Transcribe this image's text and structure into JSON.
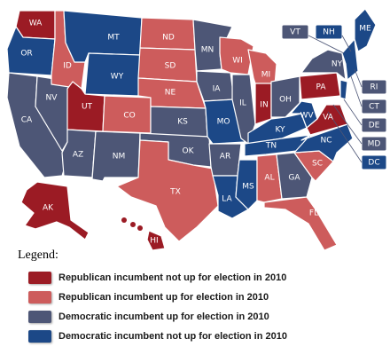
{
  "colors": {
    "rep_not_up": "#9b1b24",
    "rep_up": "#cd5c5c",
    "dem_up": "#4d5676",
    "dem_not_up": "#1c4887"
  },
  "states": {
    "WA": "WA",
    "OR": "OR",
    "CA": "CA",
    "NV": "NV",
    "ID": "ID",
    "MT": "MT",
    "WY": "WY",
    "UT": "UT",
    "AZ": "AZ",
    "CO": "CO",
    "NM": "NM",
    "ND": "ND",
    "SD": "SD",
    "NE": "NE",
    "KS": "KS",
    "OK": "OK",
    "TX": "TX",
    "MN": "MN",
    "IA": "IA",
    "MO": "MO",
    "AR": "AR",
    "LA": "LA",
    "WI": "WI",
    "IL": "IL",
    "MS": "MS",
    "MI": "MI",
    "IN": "IN",
    "KY": "KY",
    "TN": "TN",
    "AL": "AL",
    "OH": "OH",
    "GA": "GA",
    "FL": "FL",
    "SC": "SC",
    "NC": "NC",
    "WV": "WV",
    "VA": "VA",
    "PA": "PA",
    "NY": "NY",
    "ME": "ME",
    "AK": "AK",
    "HI": "HI"
  },
  "small_states": [
    "VT",
    "NH",
    "RI",
    "CT",
    "DE",
    "MD",
    "DC"
  ],
  "legend": {
    "title": "Legend:",
    "items": [
      {
        "label": "Republican incumbent not up for election in 2010",
        "color": "#9b1b24"
      },
      {
        "label": "Republican incumbent up for election in 2010",
        "color": "#cd5c5c"
      },
      {
        "label": "Democratic incumbent up for election in 2010",
        "color": "#4d5676"
      },
      {
        "label": "Democratic incumbent not up for election in 2010",
        "color": "#1c4887"
      }
    ]
  }
}
